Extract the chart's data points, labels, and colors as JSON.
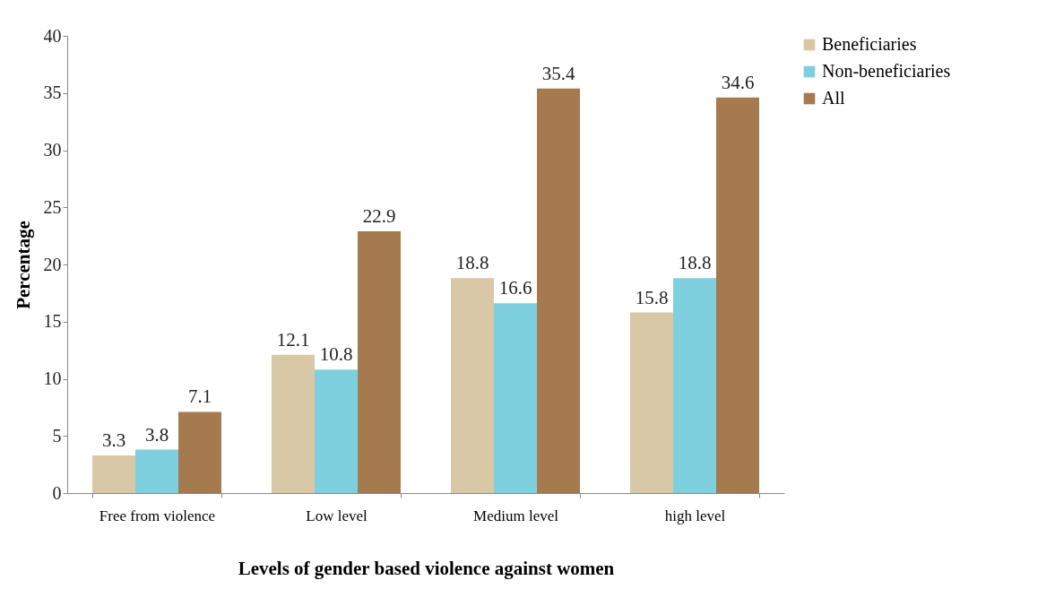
{
  "chart_data": {
    "type": "bar",
    "xlabel": "Levels of gender based violence against women",
    "ylabel": "Percentage",
    "categories": [
      "Free from violence",
      "Low level",
      "Medium level",
      "high level"
    ],
    "series": [
      {
        "name": "Beneficiaries",
        "color": "#d8c8a6",
        "values": [
          3.3,
          12.1,
          18.8,
          15.8
        ]
      },
      {
        "name": "Non-beneficiaries",
        "color": "#7fd0de",
        "values": [
          3.8,
          10.8,
          16.6,
          18.8
        ]
      },
      {
        "name": "All",
        "color": "#a57a4e",
        "values": [
          7.1,
          22.9,
          35.4,
          34.6
        ]
      }
    ],
    "ylim": [
      0,
      40
    ],
    "yticks": [
      0,
      5,
      10,
      15,
      20,
      25,
      30,
      35,
      40
    ],
    "data_labels": true,
    "grid": false,
    "legend": "right"
  }
}
